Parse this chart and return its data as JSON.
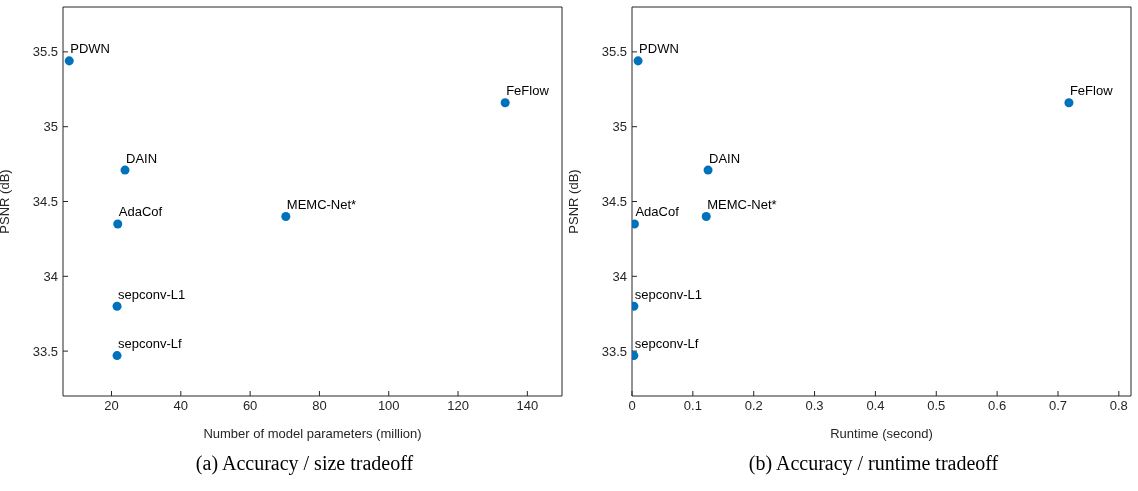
{
  "chart_data": [
    {
      "type": "scatter",
      "xlabel": "Number of model parameters (million)",
      "ylabel": "PSNR (dB)",
      "xlim": [
        6,
        150
      ],
      "xticks": [
        20,
        40,
        60,
        80,
        100,
        120,
        140
      ],
      "ylim": [
        33.2,
        35.8
      ],
      "yticks": [
        33.5,
        34,
        34.5,
        35,
        35.5
      ],
      "marker": "circle",
      "annotations": [
        "(a)  Accuracy / size tradeoff"
      ],
      "series": [
        {
          "name": "PDWN",
          "color": "#0072bd",
          "x": [
            7.8
          ],
          "values": [
            35.44
          ]
        },
        {
          "name": "FeFlow",
          "color": "#0072bd",
          "x": [
            133.6
          ],
          "values": [
            35.16
          ]
        },
        {
          "name": "DAIN",
          "color": "#0072bd",
          "x": [
            23.9
          ],
          "values": [
            34.71
          ]
        },
        {
          "name": "MEMC-Net*",
          "color": "#0072bd",
          "x": [
            70.3
          ],
          "values": [
            34.4
          ]
        },
        {
          "name": "AdaCof",
          "color": "#0072bd",
          "x": [
            21.8
          ],
          "values": [
            34.35
          ]
        },
        {
          "name": "sepconv-L1",
          "color": "#0072bd",
          "x": [
            21.6
          ],
          "values": [
            33.8
          ]
        },
        {
          "name": "sepconv-Lf",
          "color": "#0072bd",
          "x": [
            21.6
          ],
          "values": [
            33.47
          ]
        }
      ]
    },
    {
      "type": "scatter",
      "xlabel": "Runtime (second)",
      "ylabel": "PSNR (dB)",
      "xlim": [
        0,
        0.82
      ],
      "xticks": [
        0,
        0.1,
        0.2,
        0.3,
        0.4,
        0.5,
        0.6,
        0.7,
        0.8
      ],
      "ylim": [
        33.2,
        35.8
      ],
      "yticks": [
        33.5,
        34,
        34.5,
        35,
        35.5
      ],
      "marker": "circle",
      "annotations": [
        "(b)  Accuracy / runtime tradeoff"
      ],
      "series": [
        {
          "name": "PDWN",
          "color": "#0072bd",
          "x": [
            0.01
          ],
          "values": [
            35.44
          ]
        },
        {
          "name": "FeFlow",
          "color": "#0072bd",
          "x": [
            0.718
          ],
          "values": [
            35.16
          ]
        },
        {
          "name": "DAIN",
          "color": "#0072bd",
          "x": [
            0.125
          ],
          "values": [
            34.71
          ]
        },
        {
          "name": "MEMC-Net*",
          "color": "#0072bd",
          "x": [
            0.122
          ],
          "values": [
            34.4
          ]
        },
        {
          "name": "AdaCof",
          "color": "#0072bd",
          "x": [
            0.004
          ],
          "values": [
            34.35
          ]
        },
        {
          "name": "sepconv-L1",
          "color": "#0072bd",
          "x": [
            0.003
          ],
          "values": [
            33.8
          ]
        },
        {
          "name": "sepconv-Lf",
          "color": "#0072bd",
          "x": [
            0.003
          ],
          "values": [
            33.47
          ]
        }
      ]
    }
  ]
}
